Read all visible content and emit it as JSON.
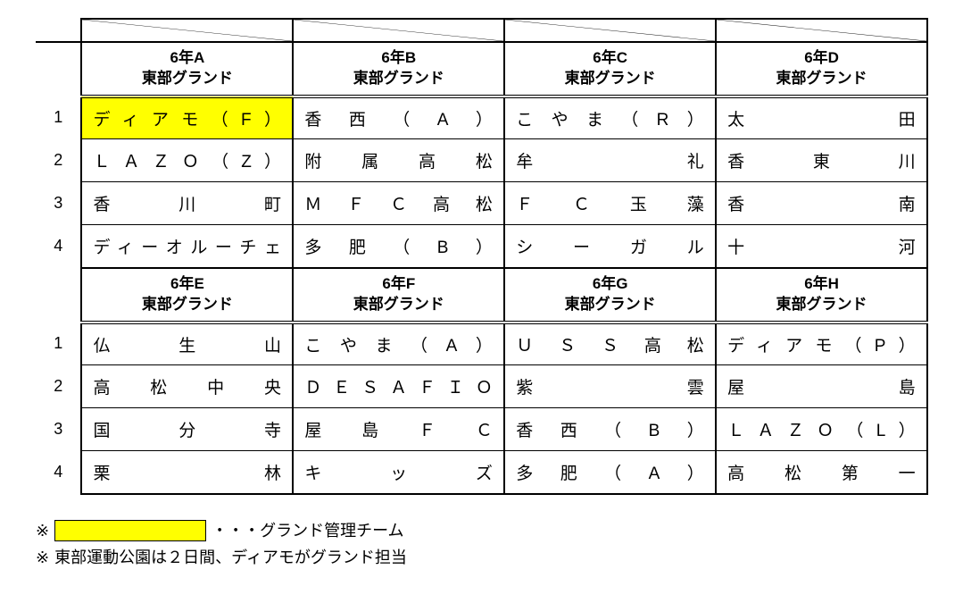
{
  "colors": {
    "highlight": "#ffff00",
    "line": "#000000",
    "bg": "#ffffff"
  },
  "row_labels": [
    "1",
    "2",
    "3",
    "4"
  ],
  "groups_top": [
    {
      "title_a": "6年A",
      "title_b": "東部グランド",
      "teams": [
        "ディアモ（F）",
        "ＬＡＺＯ（Z）",
        "香川町",
        "ディーオルーチェ"
      ]
    },
    {
      "title_a": "6年B",
      "title_b": "東部グランド",
      "teams": [
        "香西（A）",
        "附属高松",
        "ＭＦＣ高松",
        "多肥（B）"
      ]
    },
    {
      "title_a": "6年C",
      "title_b": "東部グランド",
      "teams": [
        "こやま（R）",
        "牟礼",
        "ＦＣ玉藻",
        "シーガル"
      ]
    },
    {
      "title_a": "6年D",
      "title_b": "東部グランド",
      "teams": [
        "太田",
        "香東川",
        "香南",
        "十河"
      ]
    }
  ],
  "groups_bottom": [
    {
      "title_a": "6年E",
      "title_b": "東部グランド",
      "teams": [
        "仏生山",
        "高松中央",
        "国分寺",
        "栗林"
      ]
    },
    {
      "title_a": "6年F",
      "title_b": "東部グランド",
      "teams": [
        "こやま（A）",
        "ＤＥＳＡＦＩＯ",
        "屋島ＦＣ",
        "キッズ"
      ]
    },
    {
      "title_a": "6年G",
      "title_b": "東部グランド",
      "teams": [
        "ＵＳＳ高松",
        "紫雲",
        "香西（B）",
        "多肥（A）"
      ]
    },
    {
      "title_a": "6年H",
      "title_b": "東部グランド",
      "teams": [
        "ディアモ（P）",
        "屋島",
        "ＬＡＺＯ（L）",
        "高松第一"
      ]
    }
  ],
  "highlight": {
    "section": "top",
    "group": 0,
    "row": 0
  },
  "notes": {
    "legend_label": "・・・グランド管理チーム",
    "line2": "東部運動公園は２日間、ディアモがグランド担当",
    "marker": "※"
  }
}
